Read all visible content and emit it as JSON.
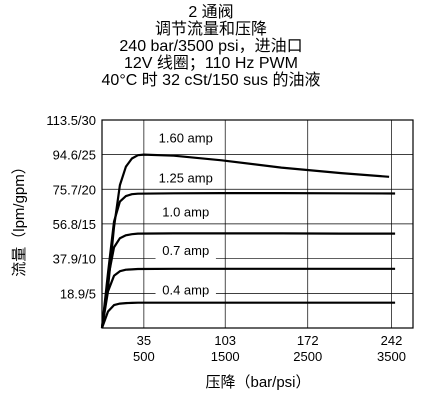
{
  "chart_data": {
    "type": "line",
    "title_lines": [
      "2 通阀",
      "调节流量和压降",
      "240 bar/3500 psi，进油口",
      "12V 线圈；110 Hz PWM",
      "40°C 时 32 cSt/150 sus 的油液"
    ],
    "xlabel": "压降（bar/psi）",
    "ylabel": "流量（lpm/gpm）",
    "x_unit": "bar",
    "y_unit": "lpm",
    "xlim": [
      0,
      260
    ],
    "ylim": [
      0,
      113.5
    ],
    "x_ticks": [
      {
        "value": 35,
        "bar": "35",
        "psi": "500"
      },
      {
        "value": 103,
        "bar": "103",
        "psi": "1500"
      },
      {
        "value": 172,
        "bar": "172",
        "psi": "2500"
      },
      {
        "value": 242,
        "bar": "242",
        "psi": "3500"
      }
    ],
    "y_ticks": [
      {
        "value": 18.9,
        "label": "18.9/5"
      },
      {
        "value": 37.9,
        "label": "37.9/10"
      },
      {
        "value": 56.8,
        "label": "56.8/15"
      },
      {
        "value": 75.7,
        "label": "75.7/20"
      },
      {
        "value": 94.6,
        "label": "94.6/25"
      },
      {
        "value": 113.5,
        "label": "113.5/30"
      }
    ],
    "grid": true,
    "legend": "none",
    "series": [
      {
        "name": "1.60 amp",
        "label_at": [
          70,
          103.5
        ],
        "x": [
          0,
          5,
          10,
          15,
          20,
          25,
          30,
          35,
          60,
          100,
          150,
          200,
          240
        ],
        "y": [
          0,
          22,
          55,
          78,
          88,
          92.5,
          94.3,
          94.6,
          94.0,
          91.5,
          87.5,
          84.5,
          82.5
        ]
      },
      {
        "name": "1.25 amp",
        "label_at": [
          70,
          81.5
        ],
        "x": [
          0,
          5,
          10,
          15,
          20,
          25,
          30,
          60,
          100,
          150,
          200,
          245
        ],
        "y": [
          0,
          30,
          58,
          69,
          72,
          73,
          73.3,
          73.5,
          73.6,
          73.6,
          73.5,
          73.4
        ]
      },
      {
        "name": "1.0 amp",
        "label_at": [
          70,
          63
        ],
        "x": [
          0,
          5,
          10,
          15,
          20,
          25,
          30,
          60,
          100,
          150,
          200,
          245
        ],
        "y": [
          0,
          27,
          44,
          49,
          50.6,
          51.2,
          51.5,
          51.6,
          51.6,
          51.6,
          51.5,
          51.5
        ]
      },
      {
        "name": "0.7 amp",
        "label_at": [
          70,
          42
        ],
        "x": [
          0,
          5,
          10,
          15,
          20,
          25,
          30,
          60,
          100,
          150,
          200,
          245
        ],
        "y": [
          0,
          20,
          28.5,
          31,
          31.8,
          32,
          32.2,
          32.3,
          32.3,
          32.3,
          32.3,
          32.3
        ]
      },
      {
        "name": "0.4 amp",
        "label_at": [
          70,
          20.5
        ],
        "x": [
          0,
          5,
          10,
          15,
          20,
          25,
          30,
          60,
          100,
          150,
          200,
          245
        ],
        "y": [
          0,
          9,
          12.5,
          13.3,
          13.6,
          13.7,
          13.8,
          13.8,
          13.8,
          13.8,
          13.8,
          13.8
        ]
      }
    ]
  }
}
